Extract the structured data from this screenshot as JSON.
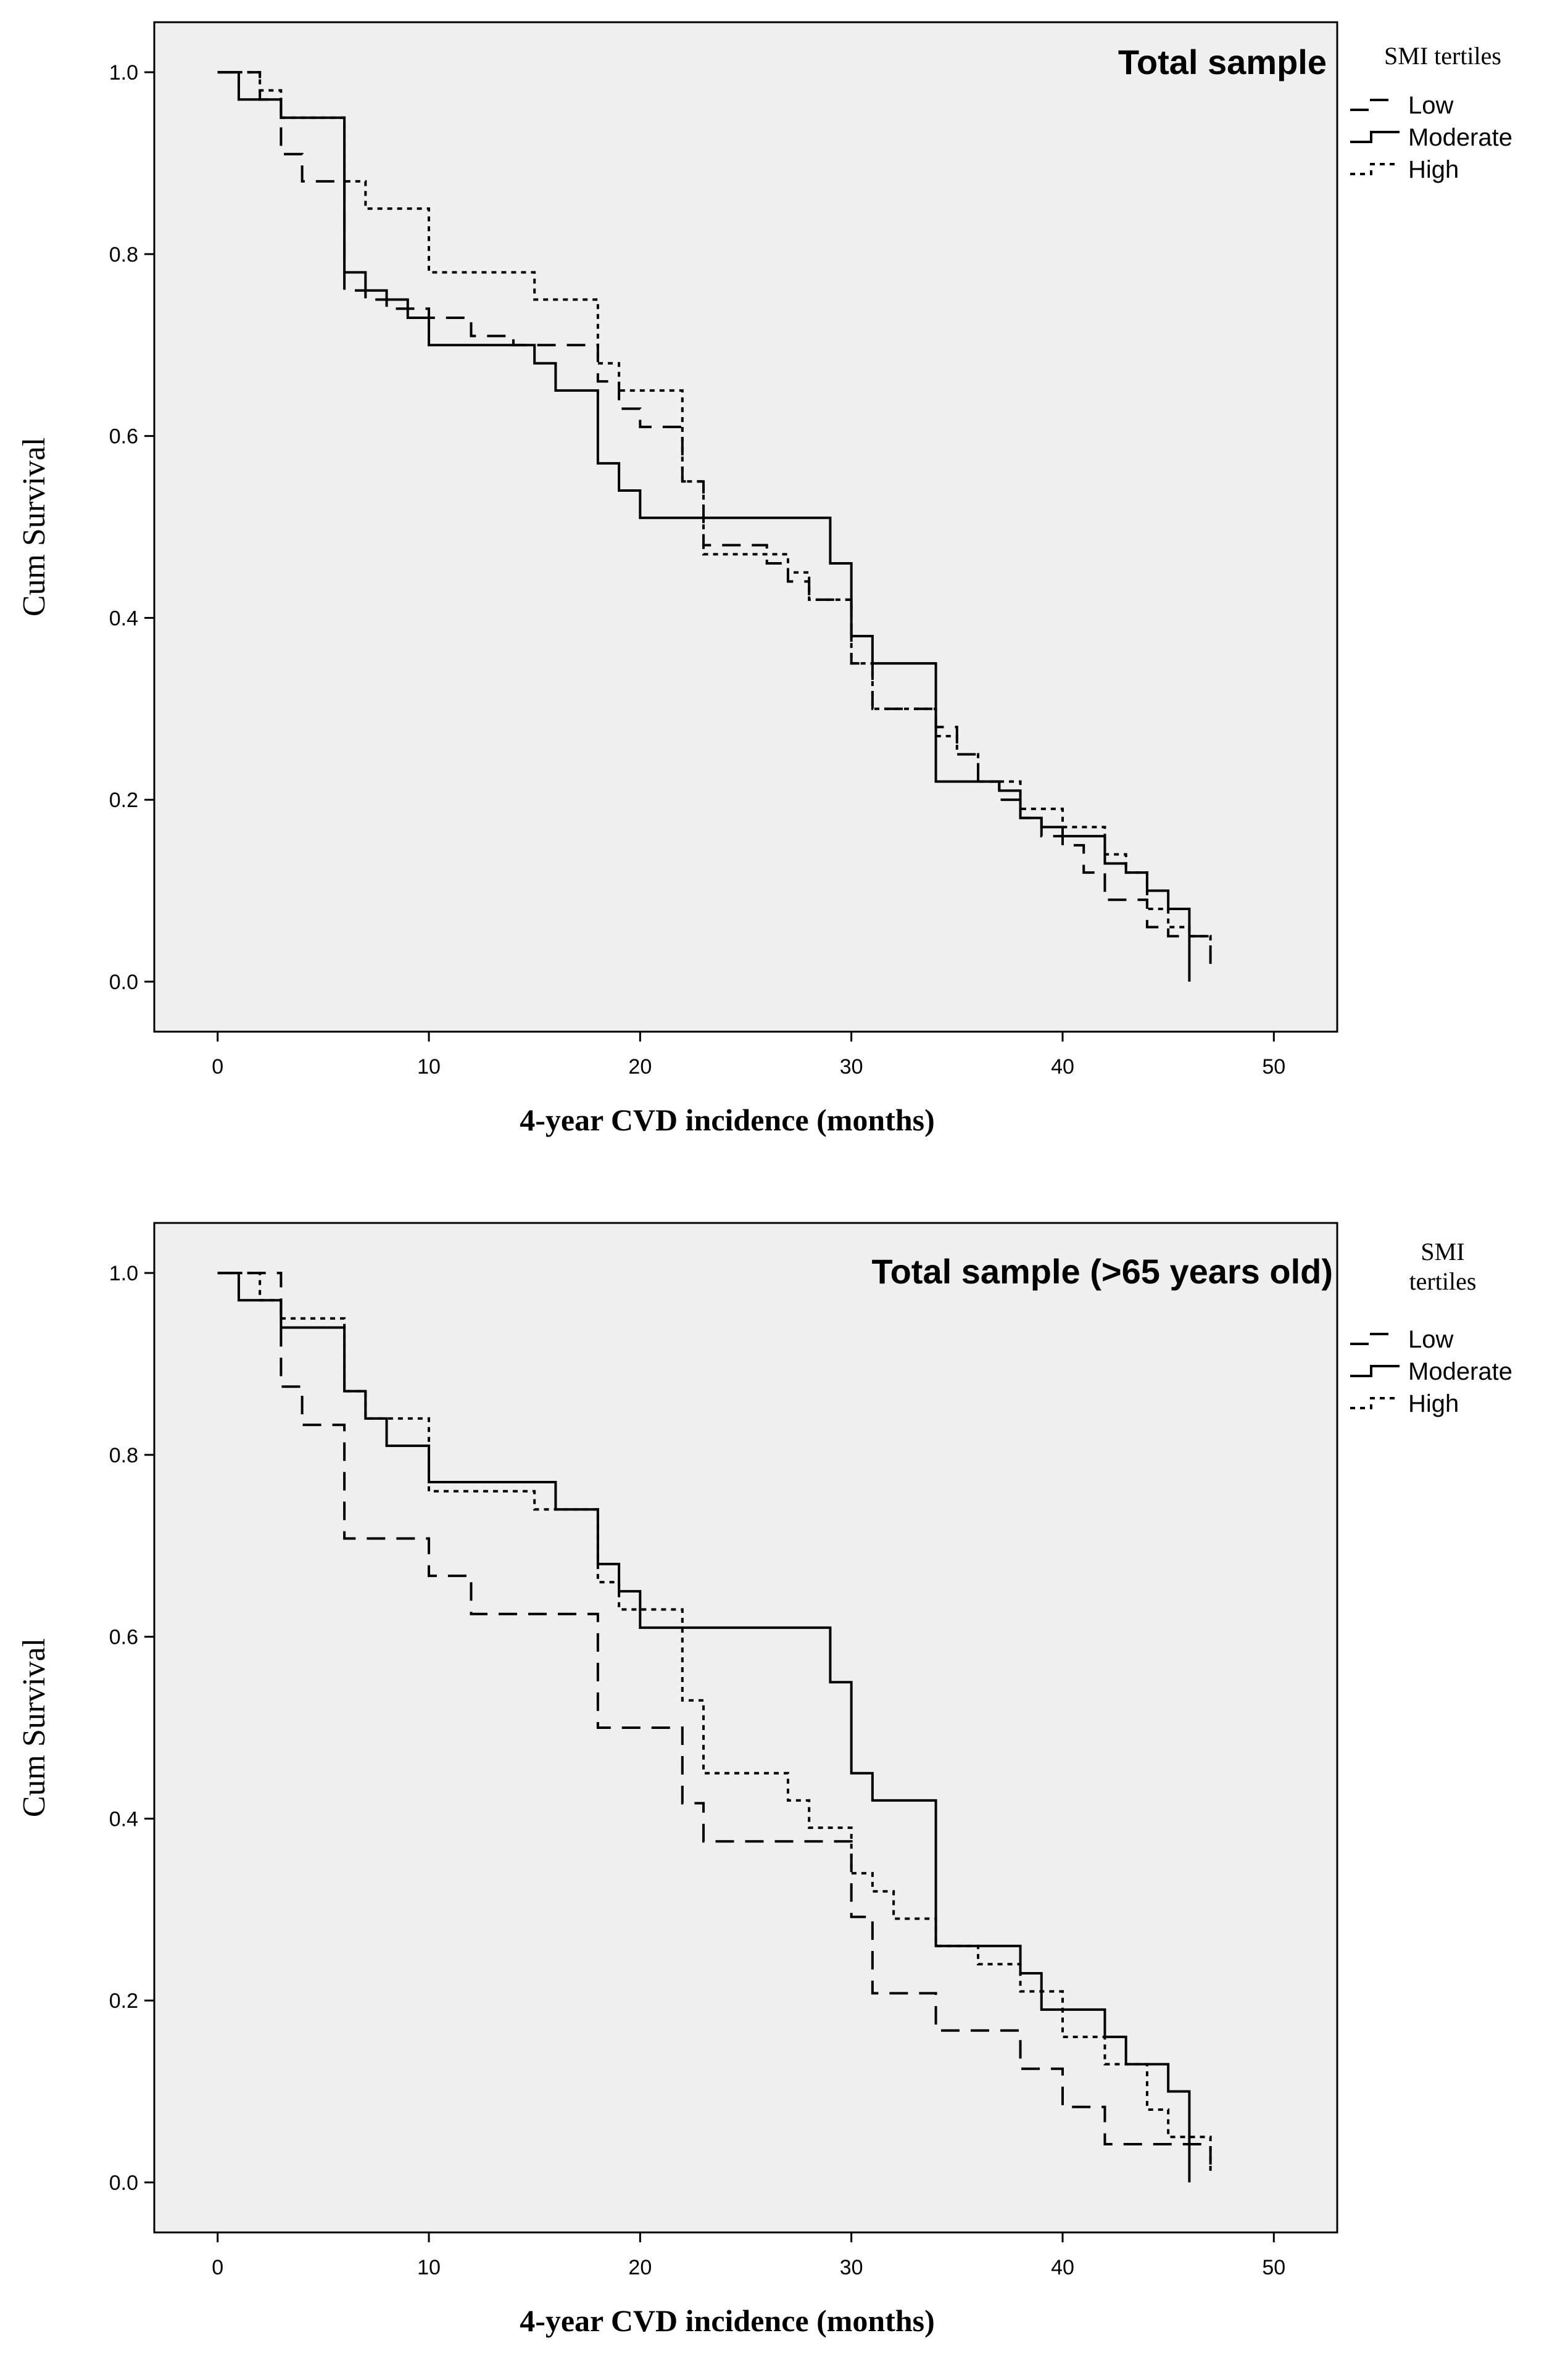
{
  "chart_data": [
    {
      "type": "line",
      "title": "Total sample",
      "xlabel": "4-year CVD incidence (months)",
      "ylabel": "Cum Survival",
      "xlim": [
        -3,
        53
      ],
      "ylim": [
        -0.055,
        1.055
      ],
      "xticks": [
        0,
        10,
        20,
        30,
        40,
        50
      ],
      "yticks": [
        "0.0",
        "0.2",
        "0.4",
        "0.6",
        "0.8",
        "1.0"
      ],
      "grid": false,
      "legend": {
        "title": [
          "SMI tertiles"
        ],
        "placement": "right-outside",
        "entries": [
          "Low",
          "Moderate",
          "High"
        ]
      },
      "series": [
        {
          "name": "Low",
          "style": "dashed",
          "x": [
            0,
            2,
            3,
            4,
            6,
            7,
            8,
            10,
            12,
            14,
            16,
            18,
            19,
            20,
            21,
            22,
            23,
            25,
            26,
            27,
            28,
            29,
            30,
            31,
            32,
            33,
            34,
            35,
            36,
            37,
            38,
            39,
            40,
            41,
            42,
            43,
            44,
            45,
            46,
            47
          ],
          "y": [
            1.0,
            0.97,
            0.91,
            0.88,
            0.76,
            0.75,
            0.74,
            0.73,
            0.71,
            0.7,
            0.7,
            0.66,
            0.63,
            0.61,
            0.61,
            0.55,
            0.48,
            0.48,
            0.46,
            0.44,
            0.42,
            0.42,
            0.35,
            0.3,
            0.3,
            0.3,
            0.28,
            0.25,
            0.22,
            0.2,
            0.18,
            0.16,
            0.15,
            0.12,
            0.09,
            0.09,
            0.06,
            0.05,
            0.05,
            0.01
          ]
        },
        {
          "name": "Moderate",
          "style": "solid",
          "x": [
            0,
            1,
            2,
            3,
            6,
            7,
            8,
            9,
            10,
            12,
            14,
            15,
            16,
            18,
            19,
            20,
            21,
            22,
            23,
            24,
            29,
            30,
            31,
            32,
            33,
            34,
            36,
            37,
            38,
            39,
            40,
            42,
            43,
            44,
            45,
            46
          ],
          "y": [
            1.0,
            0.97,
            0.97,
            0.95,
            0.78,
            0.76,
            0.75,
            0.73,
            0.7,
            0.7,
            0.7,
            0.68,
            0.65,
            0.57,
            0.54,
            0.51,
            0.51,
            0.51,
            0.51,
            0.51,
            0.46,
            0.38,
            0.35,
            0.35,
            0.35,
            0.22,
            0.22,
            0.21,
            0.18,
            0.17,
            0.16,
            0.13,
            0.12,
            0.1,
            0.08,
            0.0
          ]
        },
        {
          "name": "High",
          "style": "dotted",
          "x": [
            0,
            2,
            3,
            6,
            7,
            10,
            15,
            18,
            19,
            20,
            22,
            23,
            25,
            27,
            28,
            30,
            31,
            34,
            35,
            36,
            38,
            40,
            42,
            43,
            44,
            45,
            46,
            47
          ],
          "y": [
            1.0,
            0.98,
            0.95,
            0.88,
            0.85,
            0.78,
            0.75,
            0.68,
            0.65,
            0.65,
            0.55,
            0.47,
            0.47,
            0.45,
            0.42,
            0.35,
            0.3,
            0.27,
            0.25,
            0.22,
            0.19,
            0.17,
            0.14,
            0.12,
            0.08,
            0.06,
            0.05,
            0.04
          ]
        }
      ]
    },
    {
      "type": "line",
      "title": "Total sample (>65 years old)",
      "xlabel": "4-year CVD incidence (months)",
      "ylabel": "Cum Survival",
      "xlim": [
        -3,
        53
      ],
      "ylim": [
        -0.055,
        1.055
      ],
      "xticks": [
        0,
        10,
        20,
        30,
        40,
        50
      ],
      "yticks": [
        "0.0",
        "0.2",
        "0.4",
        "0.6",
        "0.8",
        "1.0"
      ],
      "grid": false,
      "legend": {
        "title": [
          "SMI",
          "tertiles"
        ],
        "placement": "right-outside",
        "entries": [
          "Low",
          "Moderate",
          "High"
        ]
      },
      "series": [
        {
          "name": "Low",
          "style": "dashed",
          "x": [
            0,
            3,
            4,
            6,
            10,
            12,
            18,
            22,
            23,
            30,
            31,
            32,
            34,
            36,
            38,
            40,
            41,
            42,
            46,
            47
          ],
          "y": [
            1.0,
            0.875,
            0.833,
            0.708,
            0.667,
            0.625,
            0.5,
            0.417,
            0.375,
            0.292,
            0.208,
            0.208,
            0.167,
            0.167,
            0.125,
            0.083,
            0.083,
            0.042,
            0.042,
            0.01
          ]
        },
        {
          "name": "Moderate",
          "style": "solid",
          "x": [
            0,
            1,
            3,
            6,
            7,
            8,
            10,
            16,
            18,
            19,
            20,
            29,
            30,
            31,
            32,
            34,
            38,
            39,
            42,
            43,
            44,
            45,
            46
          ],
          "y": [
            1.0,
            0.97,
            0.94,
            0.87,
            0.84,
            0.81,
            0.77,
            0.74,
            0.68,
            0.65,
            0.61,
            0.55,
            0.45,
            0.42,
            0.42,
            0.26,
            0.23,
            0.19,
            0.16,
            0.13,
            0.13,
            0.1,
            0.0
          ]
        },
        {
          "name": "High",
          "style": "dotted",
          "x": [
            0,
            2,
            3,
            6,
            7,
            10,
            15,
            18,
            19,
            22,
            23,
            27,
            28,
            30,
            31,
            32,
            34,
            36,
            38,
            40,
            42,
            43,
            44,
            45,
            47
          ],
          "y": [
            1.0,
            0.97,
            0.95,
            0.87,
            0.84,
            0.76,
            0.74,
            0.66,
            0.63,
            0.53,
            0.45,
            0.42,
            0.39,
            0.34,
            0.32,
            0.29,
            0.26,
            0.24,
            0.21,
            0.16,
            0.13,
            0.13,
            0.08,
            0.05,
            0.01
          ]
        }
      ]
    }
  ]
}
